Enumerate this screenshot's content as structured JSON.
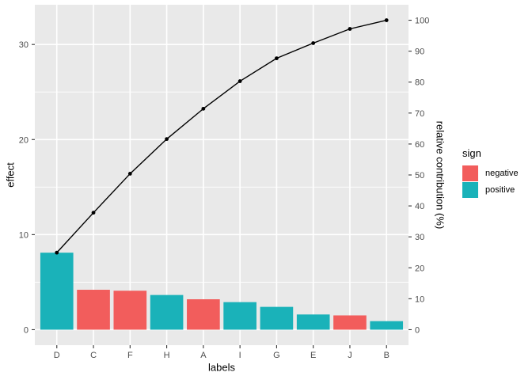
{
  "chart_data": {
    "type": "bar",
    "subtype": "pareto-with-cumulative-line",
    "title": "",
    "xlabel": "labels",
    "ylabel_left": "effect",
    "ylabel_right": "relative contribution (%)",
    "categories": [
      "D",
      "C",
      "F",
      "H",
      "A",
      "I",
      "G",
      "E",
      "J",
      "B"
    ],
    "series": [
      {
        "name": "effect",
        "type": "bar",
        "values": [
          8.1,
          4.2,
          4.1,
          3.65,
          3.2,
          2.9,
          2.4,
          1.6,
          1.5,
          0.9
        ],
        "signs": [
          "positive",
          "negative",
          "negative",
          "positive",
          "negative",
          "positive",
          "positive",
          "positive",
          "negative",
          "positive"
        ]
      },
      {
        "name": "cumulative relative contribution",
        "type": "line",
        "values_pct": [
          24.9,
          37.8,
          50.4,
          61.6,
          71.4,
          80.3,
          87.7,
          92.6,
          97.2,
          100.0
        ]
      }
    ],
    "left_axis": {
      "ticks": [
        0,
        10,
        20,
        30
      ],
      "minor_ticks": [
        5,
        15,
        25
      ],
      "lim": [
        0,
        32.55
      ]
    },
    "right_axis": {
      "ticks": [
        0,
        10,
        20,
        30,
        40,
        50,
        60,
        70,
        80,
        90,
        100
      ],
      "lim": [
        0,
        100
      ]
    },
    "legend": {
      "title": "sign",
      "items": [
        {
          "label": "negative",
          "color_key": "negative"
        },
        {
          "label": "positive",
          "color_key": "positive"
        }
      ],
      "position": "right"
    },
    "colors": {
      "negative": "#F25D5C",
      "positive": "#1AB2B9",
      "line": "#000000",
      "point": "#000000",
      "panel_background": "#E9E9E9",
      "grid": "#FFFFFF",
      "tick_mark": "#333333",
      "tick_text": "#4D4D4D",
      "axis_title_text": "#000000"
    },
    "grid": "on"
  }
}
